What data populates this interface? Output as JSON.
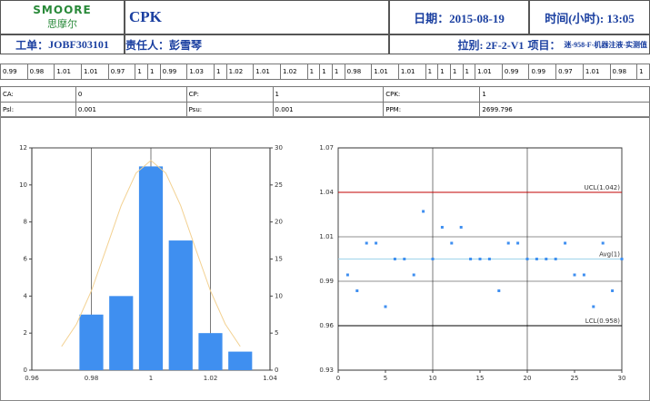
{
  "header": {
    "logo": {
      "brand": "SMOORE",
      "name": "思摩尔"
    },
    "title": "CPK",
    "date": "日期：2015-08-19",
    "time": "时间(小时): 13:05",
    "work_order_label": "工单：",
    "work_order": "JOBF303101",
    "owner": "责任人：彭雪琴",
    "line": "拉别: 2F-2-V1",
    "project_label": "项目：",
    "project": "迷-958-F-机器注液-实测值"
  },
  "measurements": [
    0.99,
    0.98,
    1.01,
    1.01,
    0.97,
    1,
    1,
    0.99,
    1.03,
    1,
    1.02,
    1.01,
    1.02,
    1,
    1,
    1,
    0.98,
    1.01,
    1.01,
    1,
    1,
    1,
    1,
    1.01,
    0.99,
    0.99,
    0.97,
    1.01,
    0.98,
    1
  ],
  "stats": {
    "rows": [
      [
        "CA:",
        "0",
        "CP:",
        "1",
        "CPK:",
        "1"
      ],
      [
        "Psl:",
        "0.001",
        "Psu:",
        "0.001",
        "PPM:",
        "2699.796"
      ]
    ]
  },
  "chart_data": [
    {
      "type": "histogram",
      "bins": [
        0.975,
        0.985,
        0.995,
        1.005,
        1.015,
        1.025,
        1.035
      ],
      "counts": [
        3,
        4,
        11,
        7,
        2,
        1
      ],
      "color": "#3f8ff0",
      "xlim": [
        0.96,
        1.04
      ],
      "xticks": [
        0.96,
        0.98,
        1,
        1.02,
        1.04
      ],
      "ylim": [
        0,
        12
      ],
      "yticks": [
        0,
        2,
        4,
        6,
        8,
        10,
        12
      ],
      "y2lim": [
        0,
        30
      ],
      "y2ticks": [
        0,
        5,
        10,
        15,
        20,
        25,
        30
      ],
      "curve": {
        "x": [
          0.97,
          0.975,
          0.98,
          0.985,
          0.99,
          0.995,
          1,
          1.005,
          1.01,
          1.015,
          1.02,
          1.025,
          1.03
        ],
        "values": [
          3.2,
          6.2,
          10.7,
          16.4,
          22.2,
          26.6,
          28.3,
          26.6,
          22.2,
          16.4,
          10.7,
          6.2,
          3.2
        ],
        "color": "#f3d191",
        "axis": "y2"
      }
    },
    {
      "type": "control",
      "x": [
        1,
        2,
        3,
        4,
        5,
        6,
        7,
        8,
        9,
        10,
        11,
        12,
        13,
        14,
        15,
        16,
        17,
        18,
        19,
        20,
        21,
        22,
        23,
        24,
        25,
        26,
        27,
        28,
        29,
        30
      ],
      "values": [
        0.99,
        0.98,
        1.01,
        1.01,
        0.97,
        1,
        1,
        0.99,
        1.03,
        1,
        1.02,
        1.01,
        1.02,
        1,
        1,
        1,
        0.98,
        1.01,
        1.01,
        1,
        1,
        1,
        1,
        1.01,
        0.99,
        0.99,
        0.97,
        1.01,
        0.98,
        1
      ],
      "color": "#3f8ff0",
      "xlim": [
        0,
        30
      ],
      "xticks": [
        0,
        5,
        10,
        15,
        20,
        25,
        30
      ],
      "ylim": [
        0.93,
        1.07
      ],
      "yticks": [
        {
          "value": 0.93,
          "label": "0.93"
        },
        {
          "value": 0.958,
          "label": "0.96"
        },
        {
          "value": 0.986,
          "label": "0.99"
        },
        {
          "value": 1.014,
          "label": "1.01"
        },
        {
          "value": 1.042,
          "label": "1.04"
        },
        {
          "value": 1.07,
          "label": "1.07"
        }
      ],
      "limits": [
        {
          "value": 1.042,
          "label": "UCL(1.042)",
          "color": "#c00000"
        },
        {
          "value": 1,
          "label": "Avg(1)",
          "color": "#9fd4ea"
        },
        {
          "value": 0.958,
          "label": "LCL(0.958)",
          "color": "#000000"
        }
      ]
    }
  ]
}
